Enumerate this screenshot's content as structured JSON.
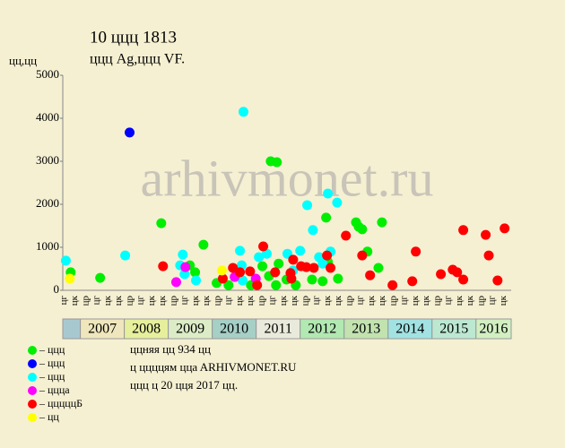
{
  "chart_data": {
    "type": "scatter",
    "title": "10 ццц 1813",
    "subtitle": "ццц Ag,ццц VF.",
    "ylabel": "цц,цц",
    "watermark": "arhivmonet.ru",
    "xlim": [
      2006.6,
      2016.8
    ],
    "ylim": [
      0,
      5000
    ],
    "yticks": [
      0,
      1000,
      2000,
      3000,
      4000,
      5000
    ],
    "x_labels": [
      {
        "value": 2006.625,
        "label": "цг"
      },
      {
        "value": 2006.875,
        "label": "цк"
      },
      {
        "value": 2007.125,
        "label": "цр"
      },
      {
        "value": 2007.375,
        "label": "цг"
      },
      {
        "value": 2007.625,
        "label": "цк"
      },
      {
        "value": 2007.875,
        "label": "цк"
      },
      {
        "value": 2008.125,
        "label": "цр"
      },
      {
        "value": 2008.375,
        "label": "цг"
      },
      {
        "value": 2008.625,
        "label": "цк"
      },
      {
        "value": 2008.875,
        "label": "цк"
      },
      {
        "value": 2009.125,
        "label": "цр"
      },
      {
        "value": 2009.375,
        "label": "цг"
      },
      {
        "value": 2009.625,
        "label": "цк"
      },
      {
        "value": 2009.875,
        "label": "цк"
      },
      {
        "value": 2010.125,
        "label": "цр"
      },
      {
        "value": 2010.375,
        "label": "цг"
      },
      {
        "value": 2010.625,
        "label": "цк"
      },
      {
        "value": 2010.875,
        "label": "цк"
      },
      {
        "value": 2011.125,
        "label": "цр"
      },
      {
        "value": 2011.375,
        "label": "цг"
      },
      {
        "value": 2011.625,
        "label": "цк"
      },
      {
        "value": 2011.875,
        "label": "цк"
      },
      {
        "value": 2012.125,
        "label": "цр"
      },
      {
        "value": 2012.375,
        "label": "цг"
      },
      {
        "value": 2012.625,
        "label": "цк"
      },
      {
        "value": 2012.875,
        "label": "цк"
      },
      {
        "value": 2013.125,
        "label": "цр"
      },
      {
        "value": 2013.375,
        "label": "цг"
      },
      {
        "value": 2013.625,
        "label": "цк"
      },
      {
        "value": 2013.875,
        "label": "цк"
      },
      {
        "value": 2014.125,
        "label": "цр"
      },
      {
        "value": 2014.375,
        "label": "цг"
      },
      {
        "value": 2014.625,
        "label": "цк"
      },
      {
        "value": 2014.875,
        "label": "цк"
      },
      {
        "value": 2015.125,
        "label": "цр"
      },
      {
        "value": 2015.375,
        "label": "цг"
      },
      {
        "value": 2015.625,
        "label": "цк"
      },
      {
        "value": 2015.875,
        "label": "цк"
      },
      {
        "value": 2016.125,
        "label": "цр"
      },
      {
        "value": 2016.375,
        "label": "цг"
      },
      {
        "value": 2016.625,
        "label": "цк"
      }
    ],
    "years": [
      2007,
      2008,
      2009,
      2010,
      2011,
      2012,
      2013,
      2014,
      2015,
      2016
    ],
    "year_colors": [
      "#efe6bd",
      "#e6ef9c",
      "#dcecc6",
      "#a6cfc6",
      "#eaeadc",
      "#b2e8b2",
      "#c2e2b0",
      "#a2e2e2",
      "#bce8d2",
      "#d2efc2"
    ],
    "lead_color": "#a8c8d0",
    "series": [
      {
        "name": "– ццц",
        "color": "#00ee00",
        "x": [
          2006.78,
          2007.45,
          2008.84,
          2009.49,
          2009.61,
          2009.8,
          2010.1,
          2010.37,
          2010.88,
          2011.14,
          2011.33,
          2011.47,
          2011.29,
          2011.51,
          2011.45,
          2011.69,
          2011.9,
          2012.27,
          2012.51,
          2012.59,
          2012.63,
          2012.86,
          2013.27,
          2013.33,
          2013.41,
          2013.53,
          2013.78,
          2013.86
        ],
        "values": [
          420,
          290,
          1560,
          580,
          420,
          1060,
          170,
          120,
          120,
          560,
          3000,
          2980,
          330,
          620,
          120,
          250,
          120,
          250,
          210,
          1690,
          660,
          270,
          1580,
          1480,
          1420,
          900,
          520,
          1580
        ]
      },
      {
        "name": "– ццц",
        "color": "#0000ff",
        "x": [
          2008.12
        ],
        "values": [
          3670
        ]
      },
      {
        "name": "– ццц",
        "color": "#00ffff",
        "x": [
          2006.67,
          2008.02,
          2009.33,
          2009.37,
          2009.27,
          2009.63,
          2010.63,
          2010.71,
          2010.69,
          2010.67,
          2011.06,
          2011.24,
          2011.71,
          2012.0,
          2012.16,
          2012.29,
          2012.43,
          2012.51,
          2012.63,
          2012.69,
          2012.84,
          2011.84
        ],
        "values": [
          690,
          810,
          830,
          375,
          580,
          230,
          920,
          4150,
          230,
          580,
          770,
          850,
          850,
          920,
          1980,
          1400,
          770,
          620,
          2250,
          900,
          2040,
          460
        ]
      },
      {
        "name": "– ццца",
        "color": "#ff00ff",
        "x": [
          2009.18,
          2009.39,
          2010.51,
          2010.99
        ],
        "values": [
          190,
          540,
          310,
          270
        ]
      },
      {
        "name": "– цццццБ",
        "color": "#ff0000",
        "x": [
          2008.88,
          2010.24,
          2010.47,
          2010.63,
          2010.86,
          2011.02,
          2011.16,
          2011.43,
          2011.78,
          2011.84,
          2011.8,
          2012.02,
          2012.14,
          2012.31,
          2012.61,
          2012.69,
          2013.04,
          2013.41,
          2013.59,
          2014.1,
          2014.55,
          2014.63,
          2015.2,
          2015.47,
          2015.57,
          2015.71,
          2015.71,
          2016.22,
          2016.29,
          2016.49,
          2016.65
        ],
        "values": [
          560,
          270,
          520,
          420,
          440,
          120,
          1020,
          420,
          400,
          710,
          270,
          560,
          540,
          520,
          810,
          520,
          1270,
          810,
          350,
          120,
          210,
          900,
          375,
          480,
          420,
          1400,
          250,
          1290,
          810,
          230,
          1440
        ]
      },
      {
        "name": "– цц",
        "color": "#ffff00",
        "x": [
          2006.76,
          2010.22
        ],
        "values": [
          270,
          460
        ]
      }
    ],
    "notes": [
      "ццняя цц 934 цц",
      "ц ццццям ццa ARHIVMONET.RU",
      "ццц ц 20 цця 2017 цц."
    ]
  }
}
